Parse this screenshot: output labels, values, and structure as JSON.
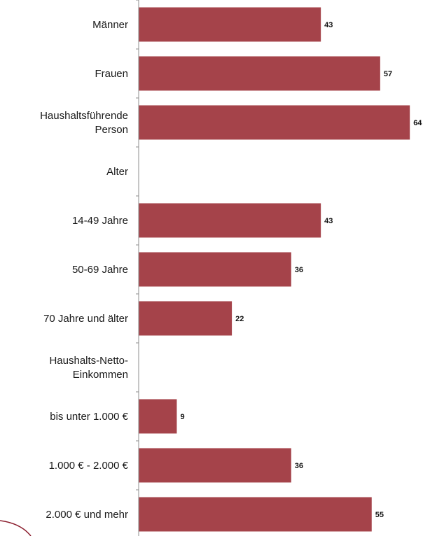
{
  "chart_data": {
    "type": "bar",
    "orientation": "horizontal",
    "bar_color": "#A5434A",
    "axis_color": "#8c8c8c",
    "decoration_color": "#8B1E2E",
    "xlim": [
      0,
      65
    ],
    "grid": false,
    "legend": "none",
    "categories": [
      [
        "Männer"
      ],
      [
        "Frauen"
      ],
      [
        "Haushaltsführende",
        "Person"
      ],
      [
        "Alter"
      ],
      [
        "14-49 Jahre"
      ],
      [
        "50-69 Jahre"
      ],
      [
        "70 Jahre und älter"
      ],
      [
        "Haushalts-Netto-",
        "Einkommen"
      ],
      [
        "bis unter 1.000 €"
      ],
      [
        "1.000 € - 2.000 €"
      ],
      [
        "2.000 € und mehr"
      ]
    ],
    "values": [
      43,
      57,
      64,
      null,
      43,
      36,
      22,
      null,
      9,
      36,
      55
    ],
    "value_labels": [
      "43",
      "57",
      "64",
      "",
      "43",
      "36",
      "22",
      "",
      "9",
      "36",
      "55"
    ]
  }
}
